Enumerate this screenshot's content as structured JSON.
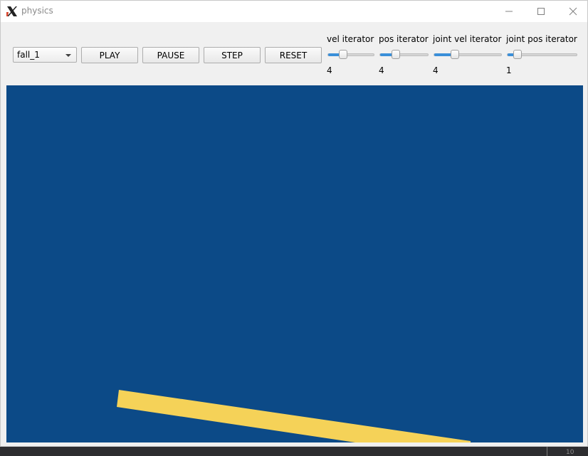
{
  "window": {
    "title": "physics"
  },
  "toolbar": {
    "scene_select": {
      "value": "fall_1"
    },
    "buttons": {
      "play": "PLAY",
      "pause": "PAUSE",
      "step": "STEP",
      "reset": "RESET"
    },
    "sliders": [
      {
        "label": "vel iterator",
        "value": "4",
        "level": 0.3
      },
      {
        "label": "pos iterator",
        "value": "4",
        "level": 0.3
      },
      {
        "label": "joint vel iterator",
        "value": "4",
        "level": 0.28
      },
      {
        "label": "joint pos iterator",
        "value": "1",
        "level": 0.1
      }
    ]
  },
  "canvas": {
    "background_color": "#0c4a87",
    "body_color": "#f5d258"
  },
  "taskbar": {
    "number": "10"
  }
}
